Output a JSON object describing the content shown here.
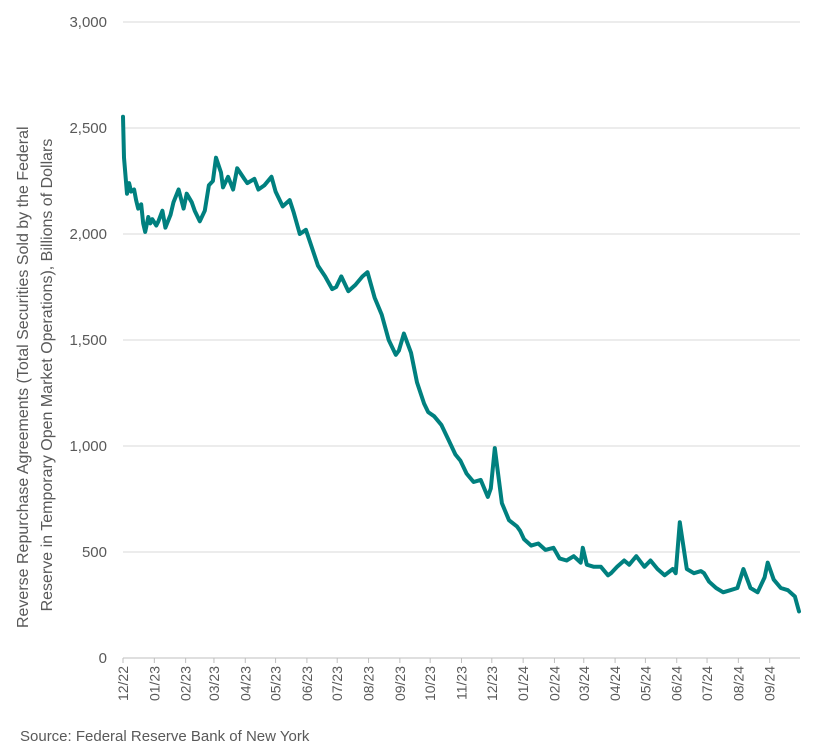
{
  "chart_data": {
    "type": "line",
    "title": "",
    "ylabel": "Reverse Repurchase Agreements (Total Securities Sold by the Federal Reserve in Temporary Open Market Operations), Billions of Dollars",
    "ylabel_lines": [
      "Reverse Repurchase Agreements (Total Securities Sold by the Federal",
      "Reserve in Temporary Open Market Operations), Billions of Dollars"
    ],
    "xlabel": "",
    "ylim": [
      0,
      3000
    ],
    "yticks": [
      0,
      500,
      1000,
      1500,
      2000,
      2500,
      3000
    ],
    "ytick_labels": [
      "0",
      "500",
      "1,000",
      "1,500",
      "2,000",
      "2,500",
      "3,000"
    ],
    "xtick_labels": [
      "12/22",
      "01/23",
      "02/23",
      "03/23",
      "04/23",
      "05/23",
      "06/23",
      "07/23",
      "08/23",
      "09/23",
      "10/23",
      "11/23",
      "12/23",
      "01/24",
      "02/24",
      "03/24",
      "04/24",
      "05/24",
      "06/24",
      "07/24",
      "08/24",
      "09/24"
    ],
    "grid": "horizontal",
    "line_color": "#00807f",
    "series": [
      {
        "x": [
          "2022-12-01",
          "2022-12-02",
          "2022-12-05",
          "2022-12-07",
          "2022-12-09",
          "2022-12-12",
          "2022-12-14",
          "2022-12-16",
          "2022-12-19",
          "2022-12-21",
          "2022-12-23",
          "2022-12-26",
          "2022-12-28",
          "2022-12-30",
          "2023-01-03",
          "2023-01-05",
          "2023-01-09",
          "2023-01-12",
          "2023-01-17",
          "2023-01-20",
          "2023-01-25",
          "2023-01-30",
          "2023-02-02",
          "2023-02-07",
          "2023-02-10",
          "2023-02-15",
          "2023-02-20",
          "2023-02-24",
          "2023-02-28",
          "2023-03-03",
          "2023-03-08",
          "2023-03-10",
          "2023-03-15",
          "2023-03-20",
          "2023-03-24",
          "2023-03-31",
          "2023-04-03",
          "2023-04-10",
          "2023-04-14",
          "2023-04-20",
          "2023-04-27",
          "2023-05-01",
          "2023-05-08",
          "2023-05-15",
          "2023-05-19",
          "2023-05-25",
          "2023-05-31",
          "2023-06-05",
          "2023-06-12",
          "2023-06-19",
          "2023-06-26",
          "2023-06-30",
          "2023-07-05",
          "2023-07-12",
          "2023-07-19",
          "2023-07-26",
          "2023-07-31",
          "2023-08-07",
          "2023-08-14",
          "2023-08-21",
          "2023-08-28",
          "2023-08-31",
          "2023-09-05",
          "2023-09-12",
          "2023-09-18",
          "2023-09-25",
          "2023-09-29",
          "2023-10-05",
          "2023-10-12",
          "2023-10-19",
          "2023-10-26",
          "2023-10-31",
          "2023-11-06",
          "2023-11-13",
          "2023-11-20",
          "2023-11-27",
          "2023-11-30",
          "2023-12-04",
          "2023-12-11",
          "2023-12-18",
          "2023-12-26",
          "2023-12-29",
          "2024-01-02",
          "2024-01-09",
          "2024-01-16",
          "2024-01-23",
          "2024-01-31",
          "2024-02-06",
          "2024-02-13",
          "2024-02-20",
          "2024-02-27",
          "2024-02-29",
          "2024-03-04",
          "2024-03-11",
          "2024-03-18",
          "2024-03-25",
          "2024-03-28",
          "2024-04-03",
          "2024-04-10",
          "2024-04-15",
          "2024-04-22",
          "2024-04-30",
          "2024-05-06",
          "2024-05-13",
          "2024-05-20",
          "2024-05-28",
          "2024-05-31",
          "2024-06-04",
          "2024-06-11",
          "2024-06-18",
          "2024-06-25",
          "2024-06-28",
          "2024-07-03",
          "2024-07-10",
          "2024-07-17",
          "2024-07-24",
          "2024-07-31",
          "2024-08-06",
          "2024-08-13",
          "2024-08-20",
          "2024-08-27",
          "2024-08-30",
          "2024-09-05",
          "2024-09-12",
          "2024-09-19",
          "2024-09-26",
          "2024-09-30"
        ],
        "values": [
          2553,
          2360,
          2190,
          2240,
          2200,
          2210,
          2160,
          2120,
          2140,
          2050,
          2010,
          2080,
          2050,
          2070,
          2040,
          2060,
          2110,
          2030,
          2090,
          2150,
          2210,
          2120,
          2190,
          2150,
          2110,
          2060,
          2110,
          2230,
          2250,
          2360,
          2290,
          2220,
          2270,
          2210,
          2310,
          2260,
          2240,
          2260,
          2210,
          2230,
          2270,
          2200,
          2130,
          2160,
          2100,
          2000,
          2020,
          1950,
          1850,
          1800,
          1740,
          1750,
          1800,
          1730,
          1760,
          1800,
          1820,
          1700,
          1620,
          1500,
          1430,
          1450,
          1530,
          1440,
          1300,
          1200,
          1160,
          1140,
          1100,
          1030,
          960,
          930,
          870,
          830,
          840,
          760,
          800,
          990,
          730,
          650,
          620,
          600,
          560,
          530,
          540,
          510,
          520,
          470,
          460,
          480,
          450,
          520,
          440,
          430,
          430,
          390,
          400,
          430,
          460,
          440,
          480,
          430,
          460,
          420,
          390,
          420,
          400,
          640,
          420,
          400,
          410,
          400,
          360,
          330,
          310,
          320,
          330,
          420,
          330,
          310,
          380,
          450,
          370,
          330,
          320,
          290,
          220
        ]
      }
    ]
  },
  "source": "Source: Federal Reserve Bank of New York"
}
